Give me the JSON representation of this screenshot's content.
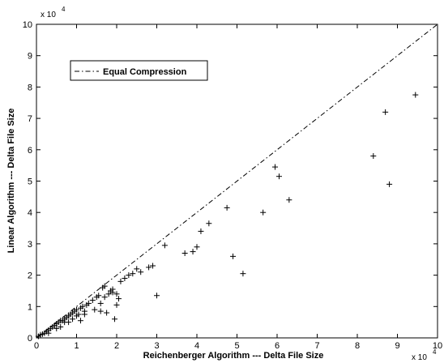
{
  "chart_data": {
    "type": "scatter",
    "title": "",
    "xlabel": "Reichenberger Algorithm --- Delta File Size",
    "ylabel": "Linear Algorithm --- Delta File Size",
    "x_multiplier_label": "x 10",
    "x_multiplier_exp": "4",
    "y_multiplier_label": "x 10",
    "y_multiplier_exp": "4",
    "xlim": [
      0,
      10
    ],
    "ylim": [
      0,
      10
    ],
    "x_ticks": [
      "0",
      "1",
      "2",
      "3",
      "4",
      "5",
      "6",
      "7",
      "8",
      "9",
      "10"
    ],
    "y_ticks": [
      "0",
      "1",
      "2",
      "3",
      "4",
      "5",
      "6",
      "7",
      "8",
      "9",
      "10"
    ],
    "grid": false,
    "legend_position": "top-left",
    "reference_line": {
      "name": "Equal Compression",
      "style": "dash-dot",
      "x": [
        0,
        10
      ],
      "y": [
        0,
        10
      ]
    },
    "marker": "+",
    "points": [
      [
        0.05,
        0.05
      ],
      [
        0.1,
        0.1
      ],
      [
        0.15,
        0.12
      ],
      [
        0.2,
        0.15
      ],
      [
        0.25,
        0.2
      ],
      [
        0.3,
        0.25
      ],
      [
        0.35,
        0.3
      ],
      [
        0.4,
        0.35
      ],
      [
        0.45,
        0.4
      ],
      [
        0.5,
        0.45
      ],
      [
        0.55,
        0.5
      ],
      [
        0.6,
        0.55
      ],
      [
        0.65,
        0.55
      ],
      [
        0.7,
        0.6
      ],
      [
        0.75,
        0.65
      ],
      [
        0.8,
        0.7
      ],
      [
        0.85,
        0.75
      ],
      [
        0.9,
        0.8
      ],
      [
        0.95,
        0.85
      ],
      [
        1.0,
        0.9
      ],
      [
        0.3,
        0.15
      ],
      [
        0.5,
        0.3
      ],
      [
        0.7,
        0.5
      ],
      [
        0.9,
        0.6
      ],
      [
        1.05,
        0.75
      ],
      [
        1.1,
        0.95
      ],
      [
        1.15,
        1.0
      ],
      [
        1.2,
        0.85
      ],
      [
        1.25,
        1.05
      ],
      [
        1.3,
        1.1
      ],
      [
        1.4,
        1.2
      ],
      [
        1.45,
        0.9
      ],
      [
        1.5,
        1.3
      ],
      [
        1.55,
        1.35
      ],
      [
        1.6,
        0.85
      ],
      [
        1.65,
        1.6
      ],
      [
        1.7,
        1.65
      ],
      [
        1.75,
        0.8
      ],
      [
        1.8,
        1.4
      ],
      [
        1.85,
        1.5
      ],
      [
        1.9,
        1.55
      ],
      [
        1.95,
        0.6
      ],
      [
        2.0,
        1.05
      ],
      [
        2.05,
        1.25
      ],
      [
        2.1,
        1.8
      ],
      [
        2.2,
        1.9
      ],
      [
        2.3,
        2.0
      ],
      [
        2.4,
        2.05
      ],
      [
        2.5,
        2.2
      ],
      [
        2.6,
        2.1
      ],
      [
        2.8,
        2.25
      ],
      [
        2.9,
        2.3
      ],
      [
        3.0,
        1.35
      ],
      [
        3.2,
        2.95
      ],
      [
        3.7,
        2.7
      ],
      [
        3.9,
        2.75
      ],
      [
        4.0,
        2.9
      ],
      [
        4.1,
        3.4
      ],
      [
        4.3,
        3.65
      ],
      [
        4.75,
        4.15
      ],
      [
        4.9,
        2.6
      ],
      [
        5.15,
        2.05
      ],
      [
        5.65,
        4.0
      ],
      [
        5.95,
        5.45
      ],
      [
        6.05,
        5.15
      ],
      [
        6.3,
        4.4
      ],
      [
        8.4,
        5.8
      ],
      [
        8.7,
        7.2
      ],
      [
        8.8,
        4.9
      ],
      [
        9.45,
        7.75
      ],
      [
        0.8,
        0.5
      ],
      [
        1.0,
        0.7
      ],
      [
        1.2,
        0.75
      ],
      [
        1.6,
        1.1
      ],
      [
        2.0,
        1.4
      ],
      [
        1.1,
        0.55
      ],
      [
        0.6,
        0.35
      ],
      [
        1.9,
        1.45
      ],
      [
        1.7,
        1.3
      ]
    ]
  }
}
